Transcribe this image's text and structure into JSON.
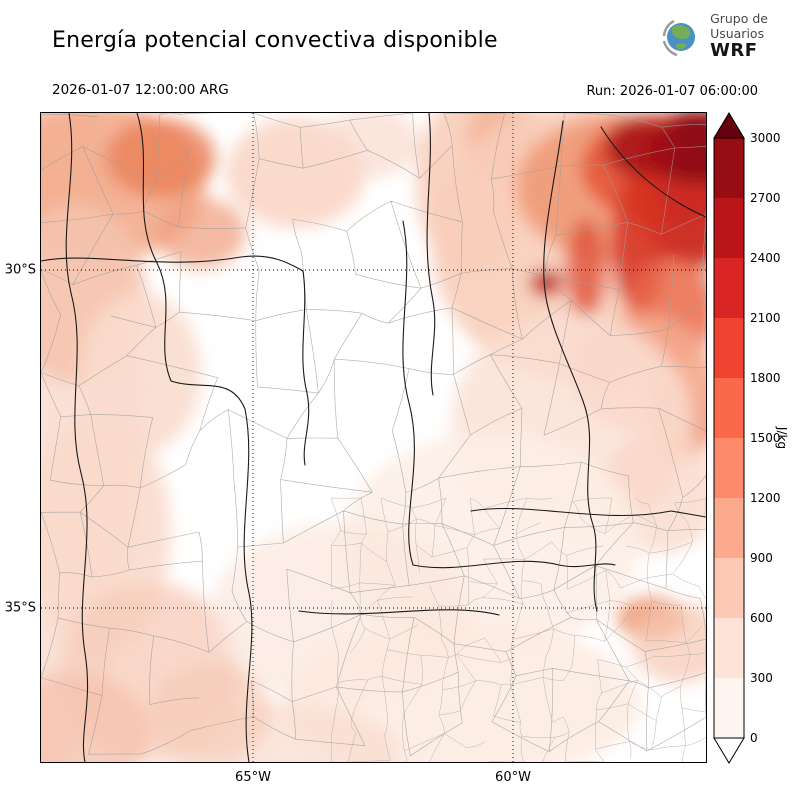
{
  "header": {
    "title": "Energía potencial convectiva disponible",
    "logo": {
      "line1": "Grupo de",
      "line2": "Usuarios",
      "line3": "WRF"
    }
  },
  "times": {
    "valid": "2026-01-07 12:00:00 ARG",
    "run": "Run: 2026-01-07 06:00:00"
  },
  "axes": {
    "y_ticks": [
      "30°S",
      "35°S"
    ],
    "x_ticks": [
      "65°W",
      "60°W"
    ]
  },
  "colorbar": {
    "label": "J/kg",
    "ticks": [
      "0",
      "300",
      "600",
      "900",
      "1200",
      "1500",
      "1800",
      "2100",
      "2400",
      "2700",
      "3000"
    ],
    "segment_colors_bottom_to_top": [
      "#fff5f0",
      "#fee4d8",
      "#fdc9b4",
      "#fcaa8e",
      "#fc8a6b",
      "#fb694a",
      "#f04431",
      "#d92523",
      "#bb151a",
      "#980c13"
    ],
    "over_color": "#67000d",
    "under_color": "#ffffff"
  },
  "chart_data": {
    "type": "heatmap",
    "title": "Energía potencial convectiva disponible",
    "units": "J/kg",
    "levels": [
      0,
      300,
      600,
      900,
      1200,
      1500,
      1800,
      2100,
      2400,
      2700,
      3000
    ],
    "colormap": "Reds",
    "valid_time": "2026-01-07 12:00:00 ARG",
    "run_time": "2026-01-07 06:00:00",
    "lat_gridlines": [
      "30°S",
      "35°S"
    ],
    "lon_gridlines": [
      "65°W",
      "60°W"
    ],
    "peak_area": "northeast corner of map, values above 2700 J/kg"
  }
}
